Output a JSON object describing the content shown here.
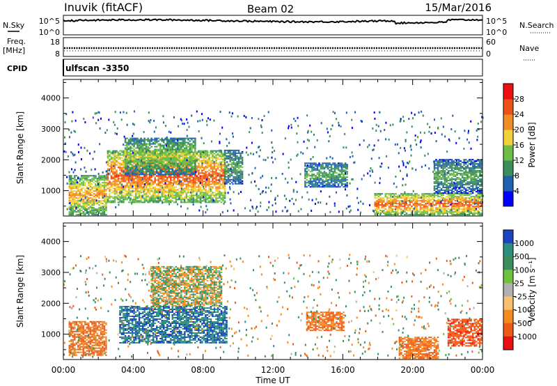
{
  "header": {
    "station": "Inuvik (fitACF)",
    "beam": "Beam 02",
    "date": "15/Mar/2016"
  },
  "noise_panel": {
    "left_label": "N.Sky",
    "left_ticks": [
      "10^5",
      "10^0"
    ],
    "right_label": "N.Search",
    "right_ticks": [
      "10^5",
      "10^0"
    ]
  },
  "freq_panel": {
    "left_label_top": "Freq.",
    "left_label_bottom": "[MHz]",
    "left_ticks": [
      "18",
      "8"
    ],
    "right_label": "Nave",
    "right_ticks": [
      "60",
      "0"
    ]
  },
  "cpid_label": "CPID",
  "cpid_value": "ulfscan -3350",
  "y_axis_label": "Slant Range [km]",
  "y_ticks": [
    "4000",
    "3000",
    "2000",
    "1000"
  ],
  "x_ticks": [
    "00:00",
    "04:00",
    "08:00",
    "12:00",
    "16:00",
    "20:00",
    "00:00"
  ],
  "x_axis_label": "Time UT",
  "power_scale": {
    "label": "Power [dB]",
    "ticks": [
      "28",
      "24",
      "20",
      "16",
      "12",
      "8",
      "4"
    ],
    "colors": [
      "#0000ff",
      "#2060b0",
      "#3c8f5a",
      "#6dbd48",
      "#f3d13a",
      "#f08c24",
      "#ec5218",
      "#ee1010"
    ]
  },
  "velocity_scale": {
    "label": "Velocity [m s⁻¹]",
    "ticks": [
      "1000",
      "500",
      "100",
      "25",
      "-25",
      "-100",
      "-500",
      "-1000"
    ],
    "colors": [
      "#1a44c0",
      "#2d8f80",
      "#3c8f5a",
      "#6dc43c",
      "#b0b0b0",
      "#f8c070",
      "#f58a1d",
      "#ee5a18",
      "#e81010"
    ]
  },
  "chart_data": [
    {
      "type": "heatmap",
      "title": "Power",
      "xlabel": "Time UT",
      "ylabel": "Slant Range [km]",
      "x_range_hours": [
        0,
        24
      ],
      "ylim": [
        180,
        4600
      ],
      "colorbar_label": "Power [dB]",
      "colorbar_range": [
        0,
        30
      ],
      "regions": [
        {
          "t": [
            0.3,
            2.5
          ],
          "r": [
            200,
            1500
          ],
          "power": 22
        },
        {
          "t": [
            2.5,
            9.2
          ],
          "r": [
            600,
            2300
          ],
          "power": 26
        },
        {
          "t": [
            3.5,
            7.5
          ],
          "r": [
            1500,
            2700
          ],
          "power": 16
        },
        {
          "t": [
            9.2,
            10.2
          ],
          "r": [
            1200,
            2300
          ],
          "power": 12
        },
        {
          "t": [
            13.8,
            16.2
          ],
          "r": [
            1100,
            1900
          ],
          "power": 12
        },
        {
          "t": [
            17.8,
            24
          ],
          "r": [
            200,
            900
          ],
          "power": 26
        },
        {
          "t": [
            21.2,
            24
          ],
          "r": [
            900,
            2000
          ],
          "power": 12
        }
      ]
    },
    {
      "type": "heatmap",
      "title": "Velocity",
      "xlabel": "Time UT",
      "ylabel": "Slant Range [km]",
      "x_range_hours": [
        0,
        24
      ],
      "ylim": [
        180,
        4600
      ],
      "colorbar_label": "Velocity [m s⁻¹]",
      "colorbar_range": [
        -1000,
        1000
      ],
      "regions": [
        {
          "t": [
            0.3,
            2.5
          ],
          "r": [
            300,
            1400
          ],
          "velocity": -300
        },
        {
          "t": [
            3.2,
            9.3
          ],
          "r": [
            700,
            1900
          ],
          "velocity": 700
        },
        {
          "t": [
            5,
            9
          ],
          "r": [
            1900,
            3200
          ],
          "velocity": 0
        },
        {
          "t": [
            13.9,
            16
          ],
          "r": [
            1100,
            1700
          ],
          "velocity": -300
        },
        {
          "t": [
            19.2,
            21.5
          ],
          "r": [
            200,
            900
          ],
          "velocity": -300
        },
        {
          "t": [
            22,
            24
          ],
          "r": [
            600,
            1500
          ],
          "velocity": -600
        }
      ]
    }
  ]
}
